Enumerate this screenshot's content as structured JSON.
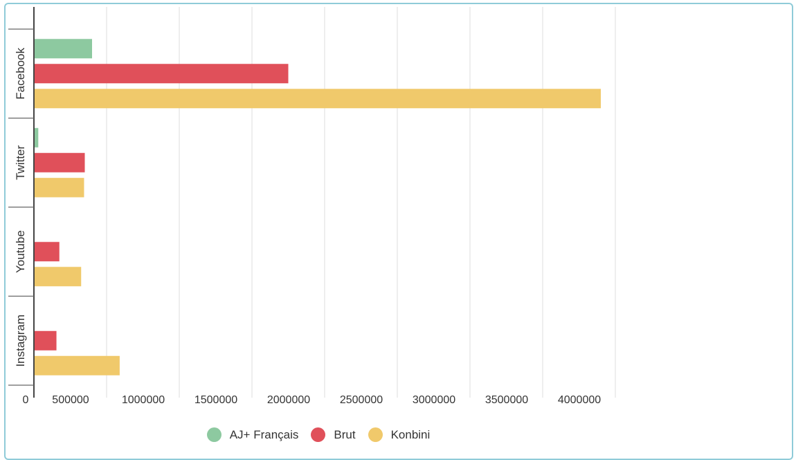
{
  "chart_data": {
    "type": "bar",
    "orientation": "horizontal",
    "categories": [
      "Facebook",
      "Twitter",
      "Youtube",
      "Instagram"
    ],
    "series": [
      {
        "name": "AJ+ Français",
        "color": "#8dc9a0",
        "values": [
          400000,
          30000,
          0,
          0
        ]
      },
      {
        "name": "Brut",
        "color": "#e0505a",
        "values": [
          1750000,
          350000,
          175000,
          155000
        ]
      },
      {
        "name": "Konbini",
        "color": "#f0c96b",
        "values": [
          3900000,
          345000,
          325000,
          590000
        ]
      }
    ],
    "xticks": [
      "0",
      "500000",
      "1000000",
      "1500000",
      "2000000",
      "2500000",
      "3000000",
      "3500000",
      "4000000"
    ],
    "xlim": [
      0,
      4000000
    ],
    "grid": true,
    "legend_position": "bottom"
  }
}
